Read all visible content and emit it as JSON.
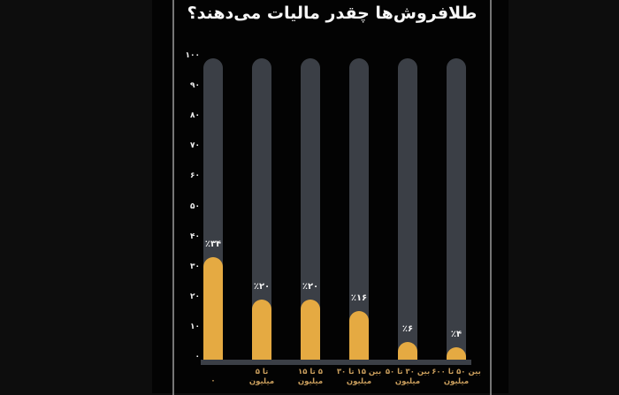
{
  "image": {
    "bg_outer": "#0d0d0d",
    "bg_chart": "#030303",
    "edge_line_color": "#757575"
  },
  "chart_data": {
    "type": "bar",
    "title": "طلافروش‌ها چقدر مالیات می‌دهند؟",
    "direction": "rtl",
    "categories": [
      "۰",
      "تا ۵\nمیلیون",
      "۵ تا ۱۵\nمیلیون",
      "بین ۱۵ تا ۳۰\nمیلیون",
      "بین ۳۰ تا ۵۰\nمیلیون",
      "بین ۵۰ تا ۶۰۰\nمیلیون"
    ],
    "values": [
      34,
      20,
      20,
      16,
      6,
      4
    ],
    "value_labels": [
      "٪۳۴",
      "٪۲۰",
      "٪۲۰",
      "٪۱۶",
      "٪۶",
      "٪۴"
    ],
    "y_ticks": [
      {
        "value": 100,
        "label": "۱۰۰"
      },
      {
        "value": 90,
        "label": "۹۰"
      },
      {
        "value": 80,
        "label": "۸۰"
      },
      {
        "value": 70,
        "label": "۷۰"
      },
      {
        "value": 60,
        "label": "۶۰"
      },
      {
        "value": 50,
        "label": "۵۰"
      },
      {
        "value": 40,
        "label": "۴۰"
      },
      {
        "value": 30,
        "label": "۳۰"
      },
      {
        "value": 20,
        "label": "۲۰"
      },
      {
        "value": 10,
        "label": "۱۰"
      },
      {
        "value": 0,
        "label": "۰"
      }
    ],
    "ylim": [
      0,
      100
    ],
    "grid": false,
    "legend": false,
    "colors": {
      "bar_fill": "#e5aa42",
      "bar_track": "#3b3f46",
      "baseline": "#3b3f46",
      "title": "#f7f7f7",
      "tick_label": "#ededed",
      "value_label": "#f2f2f2",
      "category_label": "#c89d5c"
    }
  }
}
